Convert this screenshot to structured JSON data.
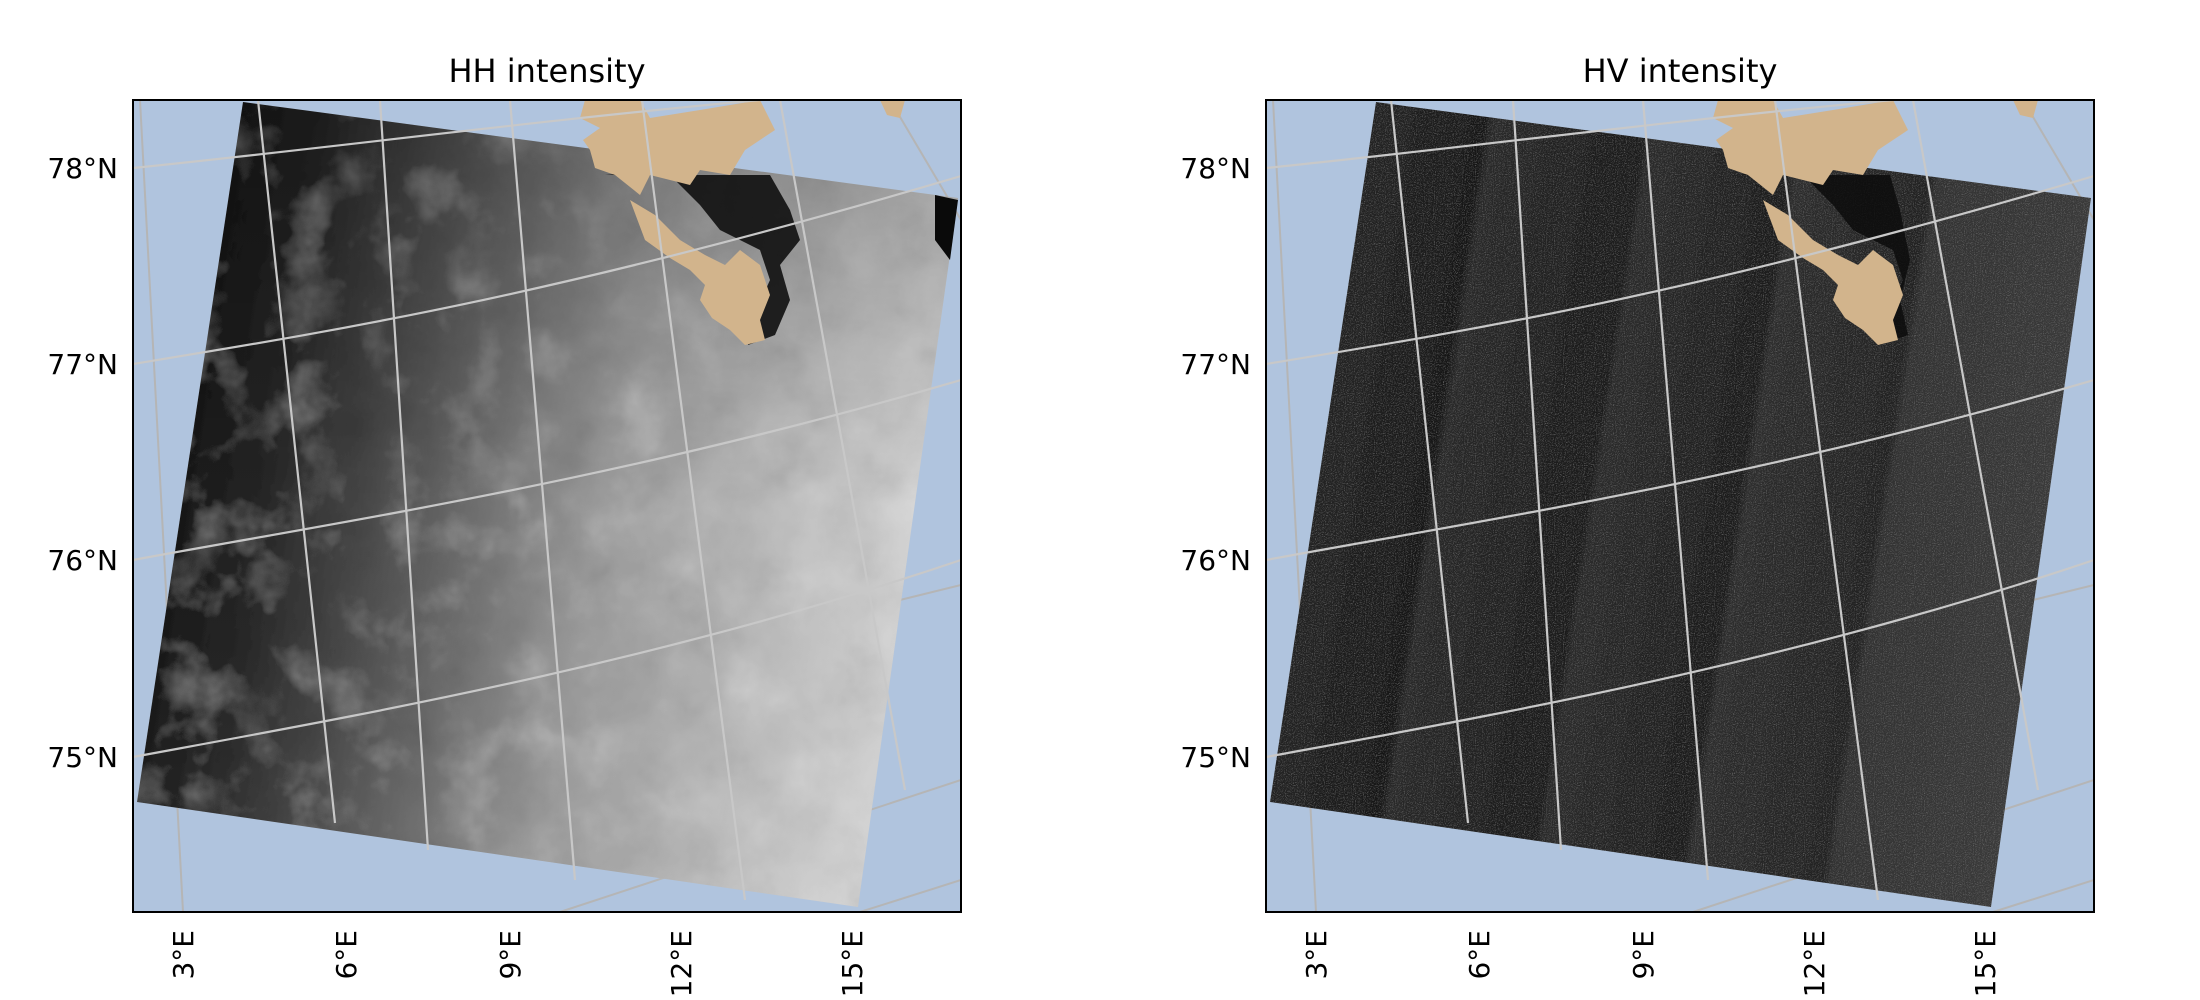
{
  "colors": {
    "ocean": "#b0c4de",
    "land": "#d2b48c",
    "gridlines": "#c8c8c8",
    "frame": "#000000"
  },
  "panels": [
    {
      "title": "HH intensity",
      "image_tone": "bright-gradient",
      "lat_labels": [
        "78°N",
        "77°N",
        "76°N",
        "75°N"
      ],
      "lon_labels": [
        "3°E",
        "6°E",
        "9°E",
        "12°E",
        "15°E"
      ]
    },
    {
      "title": "HV intensity",
      "image_tone": "dark-banded",
      "lat_labels": [
        "78°N",
        "77°N",
        "76°N",
        "75°N"
      ],
      "lon_labels": [
        "3°E",
        "6°E",
        "9°E",
        "12°E",
        "15°E"
      ]
    }
  ]
}
